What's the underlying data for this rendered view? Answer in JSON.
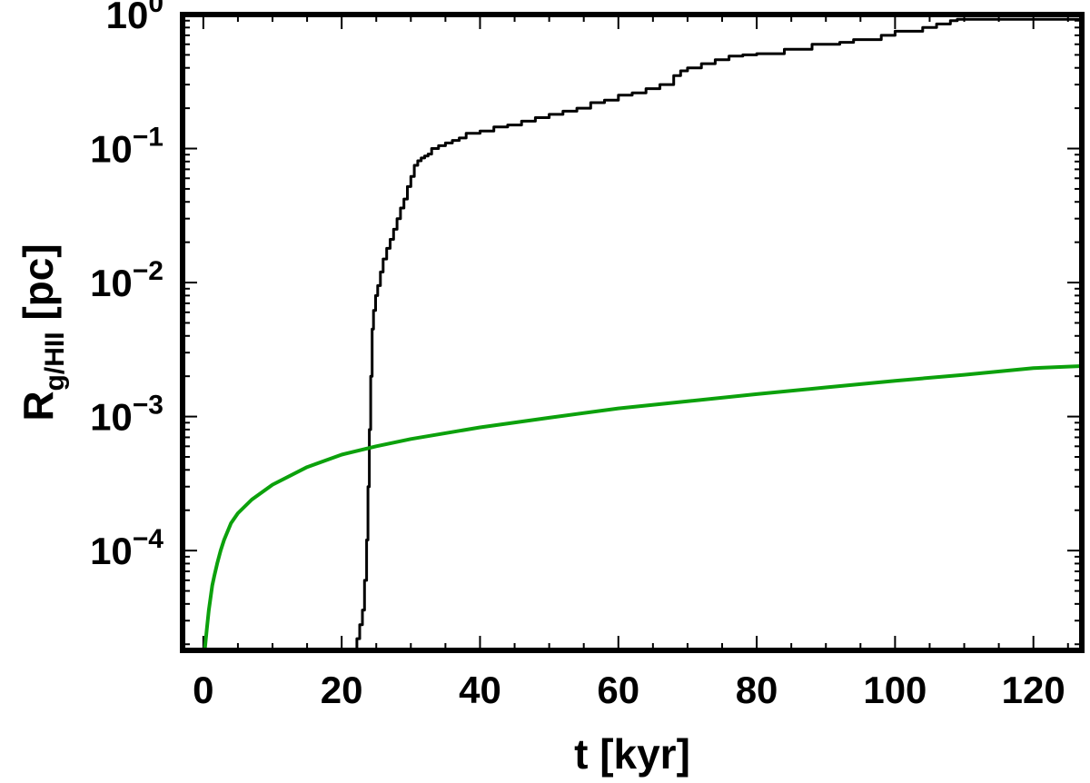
{
  "chart_data": {
    "type": "line",
    "xlabel": "t [kyr]",
    "ylabel": {
      "main": "R",
      "sub": "g/HII",
      "unit": " [pc]"
    },
    "xlim": [
      -3,
      127
    ],
    "ylim": [
      1.8e-05,
      1.0
    ],
    "yscale": "log",
    "grid": false,
    "x_ticks": [
      0,
      20,
      40,
      60,
      80,
      100,
      120
    ],
    "y_ticks": [
      {
        "value": 1,
        "base": "10",
        "exp": "0"
      },
      {
        "value": 0.1,
        "base": "10",
        "exp": "−1"
      },
      {
        "value": 0.01,
        "base": "10",
        "exp": "−2"
      },
      {
        "value": 0.001,
        "base": "10",
        "exp": "−3"
      },
      {
        "value": 0.0001,
        "base": "10",
        "exp": "−4"
      }
    ],
    "series": [
      {
        "color": "#000000",
        "style": "step",
        "x": [
          21.6,
          22.2,
          22.6,
          23.0,
          23.3,
          23.6,
          23.8,
          24.0,
          24.2,
          24.4,
          24.6,
          24.9,
          25.2,
          25.6,
          26.0,
          26.5,
          27.0,
          27.5,
          28.0,
          28.5,
          29.0,
          29.5,
          30.0,
          30.5,
          31.0,
          31.5,
          32.0,
          32.5,
          33.0,
          34.0,
          35.0,
          36.0,
          37.0,
          38.0,
          40.0,
          42.0,
          44.0,
          46.0,
          48.0,
          50.0,
          52.0,
          54.0,
          56.0,
          58.0,
          60.0,
          62.0,
          64.0,
          66.0,
          68.0,
          69.0,
          70.0,
          72.0,
          74.0,
          76.0,
          78.0,
          80.0,
          84.0,
          88.0,
          92.0,
          94.0,
          98.0,
          100.0,
          104.0,
          106.0,
          108.0,
          109.0,
          127.0
        ],
        "y": [
          1.8e-05,
          2.2e-05,
          2.8e-05,
          3.6e-05,
          6e-05,
          0.00012,
          0.0003,
          0.0008,
          0.002,
          0.0045,
          0.0062,
          0.008,
          0.0095,
          0.012,
          0.015,
          0.018,
          0.021,
          0.025,
          0.03,
          0.036,
          0.042,
          0.052,
          0.062,
          0.075,
          0.081,
          0.085,
          0.088,
          0.091,
          0.1,
          0.105,
          0.11,
          0.115,
          0.12,
          0.13,
          0.135,
          0.145,
          0.15,
          0.16,
          0.17,
          0.18,
          0.19,
          0.2,
          0.22,
          0.23,
          0.25,
          0.26,
          0.28,
          0.3,
          0.35,
          0.38,
          0.4,
          0.43,
          0.46,
          0.49,
          0.5,
          0.51,
          0.55,
          0.6,
          0.62,
          0.65,
          0.7,
          0.75,
          0.8,
          0.85,
          0.9,
          0.92,
          0.92
        ]
      },
      {
        "color": "#0ca10c",
        "style": "smooth",
        "x": [
          0.2,
          0.5,
          0.8,
          1.0,
          1.3,
          1.6,
          2.0,
          2.5,
          3.0,
          4.0,
          5.0,
          7.0,
          10.0,
          15.0,
          20.0,
          25.0,
          30.0,
          40.0,
          50.0,
          60.0,
          70.0,
          80.0,
          90.0,
          100.0,
          110.0,
          120.0,
          127.0
        ],
        "y": [
          1.8e-05,
          2.6e-05,
          3.6e-05,
          4.3e-05,
          5.5e-05,
          6.5e-05,
          8e-05,
          0.0001,
          0.00012,
          0.00016,
          0.00019,
          0.00024,
          0.00031,
          0.00042,
          0.00052,
          0.0006,
          0.00068,
          0.00083,
          0.00098,
          0.00115,
          0.0013,
          0.00147,
          0.00165,
          0.00185,
          0.00205,
          0.0023,
          0.00238
        ]
      }
    ]
  }
}
